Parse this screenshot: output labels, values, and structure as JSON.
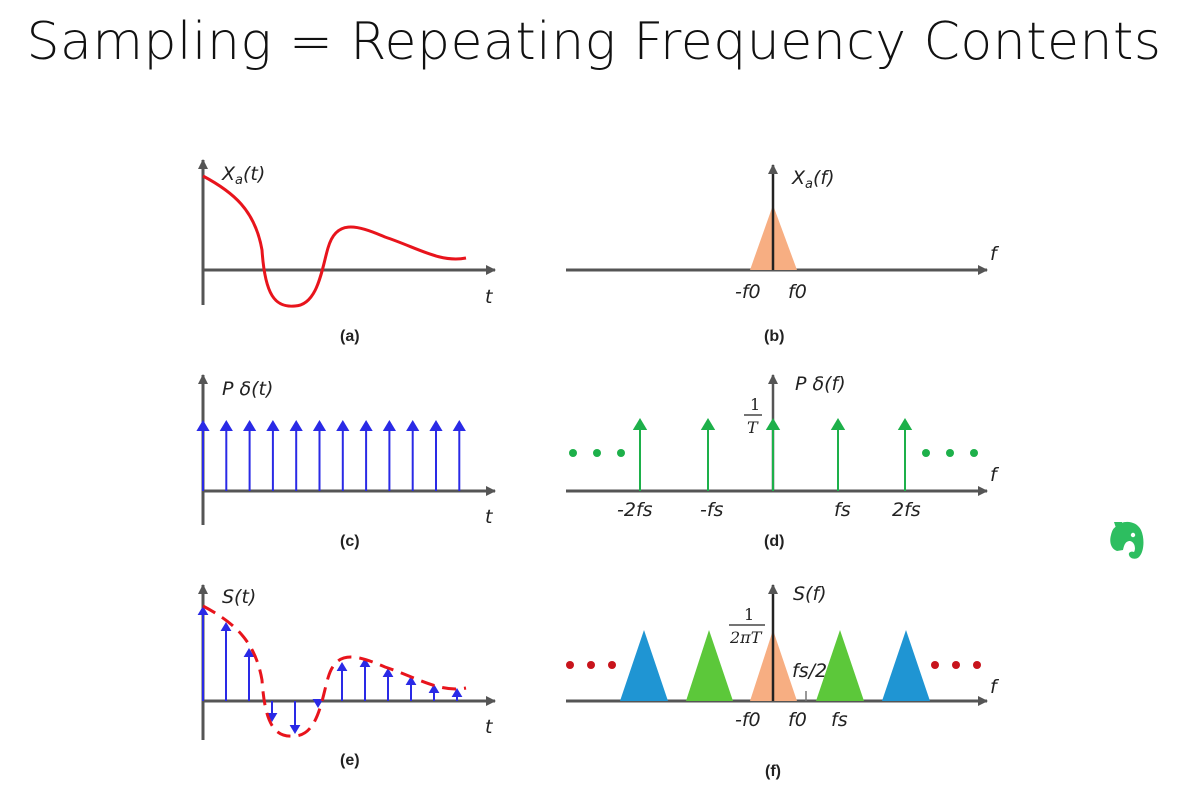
{
  "slide": {
    "title": "Sampling = Repeating Frequency Contents"
  },
  "panels": {
    "a": {
      "ylabel": "Xa(t)",
      "ylabel_main": "X",
      "ylabel_sub": "a",
      "ylabel_arg": "(t)",
      "xlabel": "t",
      "caption": "(a)"
    },
    "b": {
      "ylabel": "Xa(f)",
      "ylabel_main": "X",
      "ylabel_sub": "a",
      "ylabel_arg": "(f)",
      "xlabel": "f",
      "ticks": [
        "-f0",
        "f0"
      ],
      "caption": "(b)"
    },
    "c": {
      "ylabel": "P δ(t)",
      "xlabel": "t",
      "caption": "(c)",
      "impulse_count": 12
    },
    "d": {
      "ylabel": "P δ(f)",
      "xlabel": "f",
      "amp_num": "1",
      "amp_den": "T",
      "ticks": [
        "-2fs",
        "-fs",
        "fs",
        "2fs"
      ],
      "caption": "(d)"
    },
    "e": {
      "ylabel": "S(t)",
      "xlabel": "t",
      "caption": "(e)"
    },
    "f": {
      "ylabel": "S(f)",
      "xlabel": "f",
      "amp_num": "1",
      "amp_den": "2πT",
      "half_label": "fs/2",
      "ticks": [
        "-f0",
        "f0",
        "fs"
      ],
      "caption": "(f)"
    }
  },
  "colors": {
    "signal": "#e8141c",
    "impulse_time": "#2a2ae6",
    "impulse_freq": "#1db04a",
    "spectrum_base": "#f7ae82",
    "spectrum_green": "#5cc83a",
    "spectrum_blue": "#1f95d3",
    "dots_green": "#1db04a",
    "dots_red": "#c8141c",
    "axis": "#555555",
    "evernote": "#2dbe60"
  },
  "icons": [
    "evernote-elephant-icon"
  ]
}
